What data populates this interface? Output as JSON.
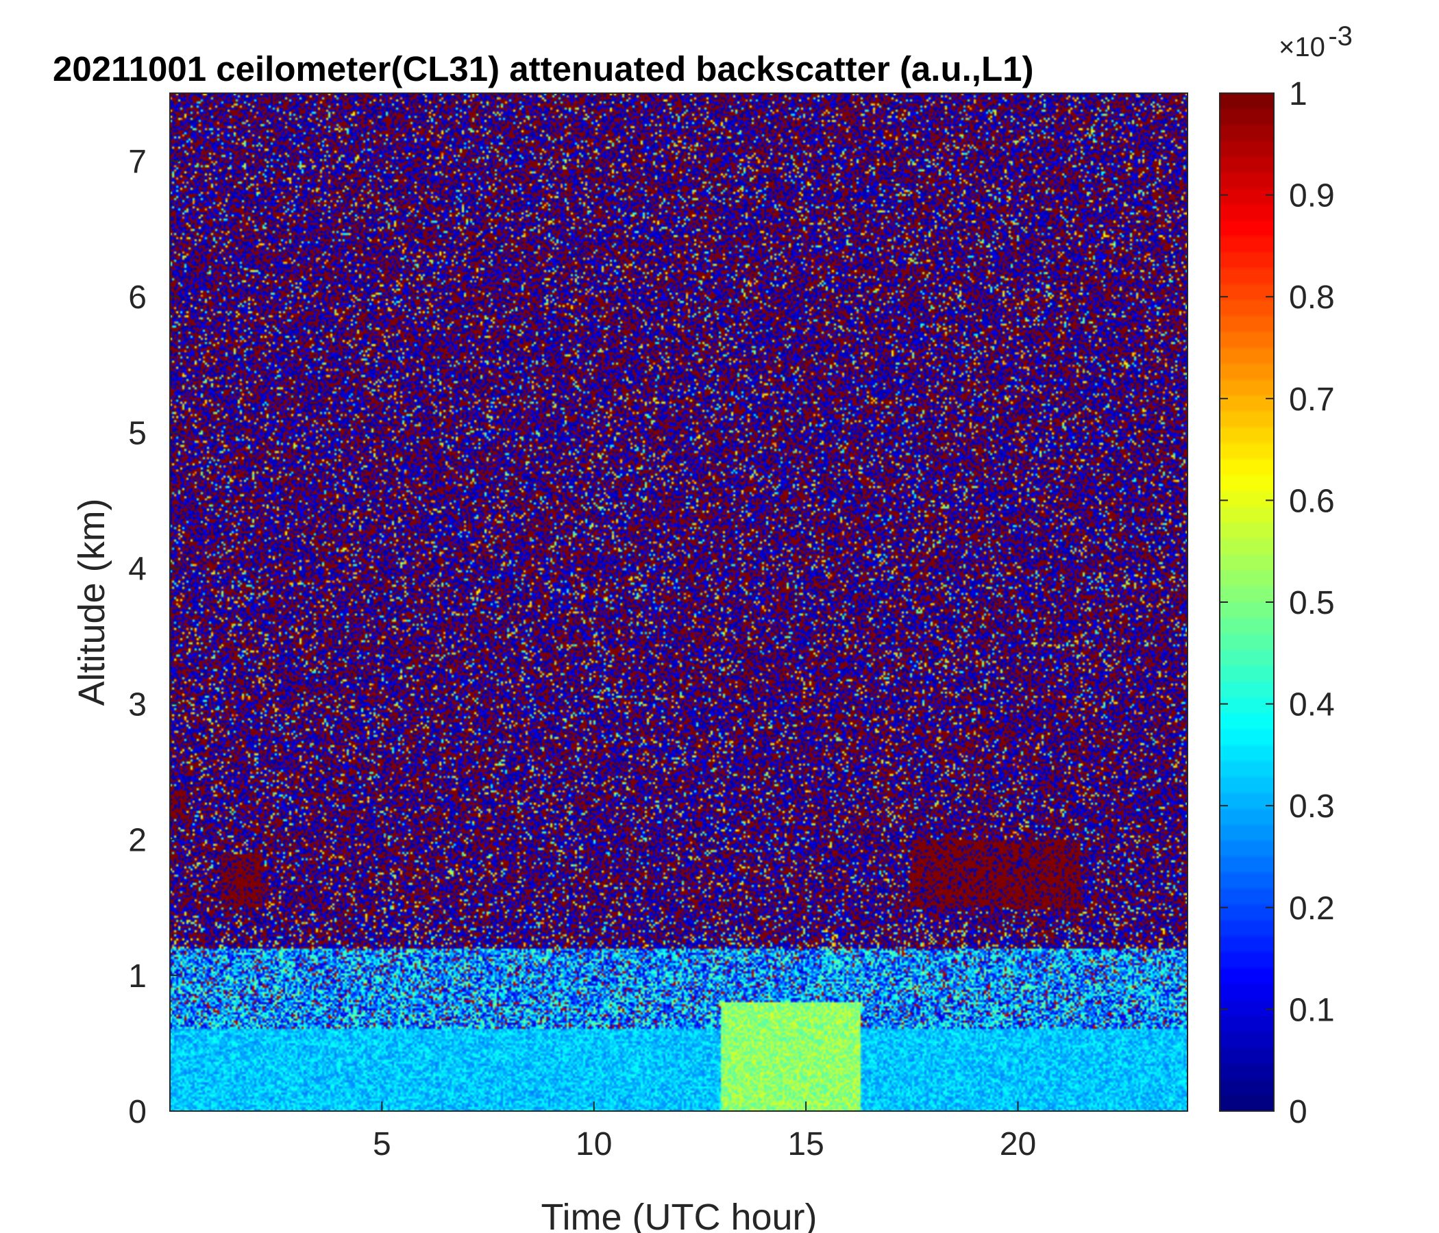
{
  "chart_data": {
    "type": "heatmap",
    "title": "20211001 ceilometer(CL31) attenuated backscatter (a.u.,L1)",
    "xlabel": "Time (UTC hour)",
    "ylabel": "Altitude (km)",
    "xlim": [
      0,
      24
    ],
    "ylim": [
      0,
      7.5
    ],
    "xticks": [
      5,
      10,
      15,
      20
    ],
    "xtick_labels": [
      "5",
      "10",
      "15",
      "20"
    ],
    "yticks": [
      0,
      1,
      2,
      3,
      4,
      5,
      6,
      7
    ],
    "ytick_labels": [
      "0",
      "1",
      "2",
      "3",
      "4",
      "5",
      "6",
      "7"
    ],
    "colormap": "jet",
    "colorbar": {
      "range": [
        0,
        1
      ],
      "exponent_label": "×10",
      "exponent_power": "-3",
      "ticks": [
        0,
        0.1,
        0.2,
        0.3,
        0.4,
        0.5,
        0.6,
        0.7,
        0.8,
        0.9,
        1
      ],
      "tick_labels": [
        "0",
        "0.1",
        "0.2",
        "0.3",
        "0.4",
        "0.5",
        "0.6",
        "0.7",
        "0.8",
        "0.9",
        "1"
      ]
    },
    "features": [
      {
        "x_range": [
          0,
          24
        ],
        "y_range": [
          0,
          0.6
        ],
        "level": 0.32
      },
      {
        "x_range": [
          13,
          16.3
        ],
        "y_range": [
          0,
          0.8
        ],
        "level": 0.52
      },
      {
        "x_range": [
          0,
          0.4
        ],
        "y_range": [
          2.15,
          2.35
        ],
        "level": 1.0
      },
      {
        "x_range": [
          1.2,
          2.2
        ],
        "y_range": [
          1.5,
          1.9
        ],
        "level": 1.0
      },
      {
        "x_range": [
          17.5,
          21.5
        ],
        "y_range": [
          1.5,
          2.0
        ],
        "level": 1.0
      }
    ]
  }
}
